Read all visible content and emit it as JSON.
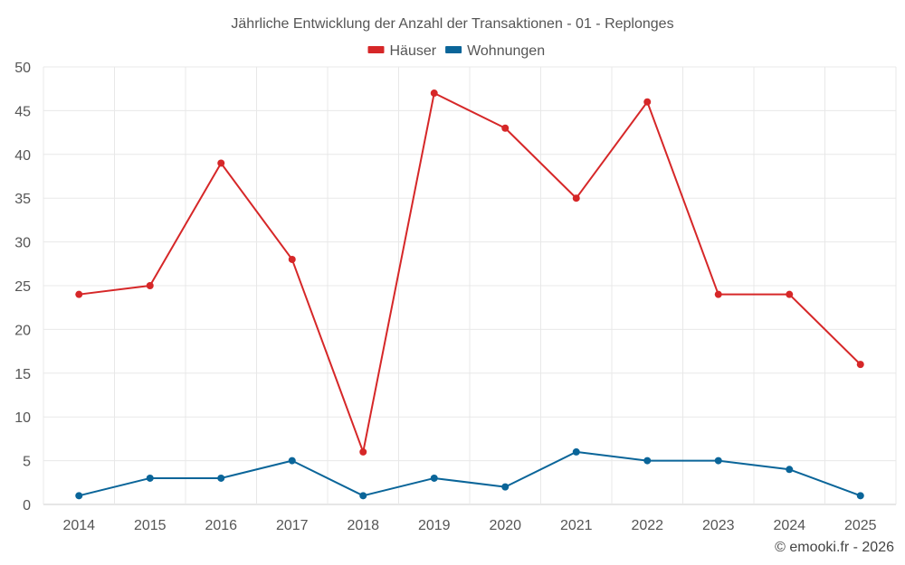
{
  "chart_data": {
    "type": "line",
    "title": "Jährliche Entwicklung der Anzahl der Transaktionen - 01 - Replonges",
    "xlabel": "",
    "ylabel": "",
    "ylim": [
      0,
      50
    ],
    "yticks": [
      0,
      5,
      10,
      15,
      20,
      25,
      30,
      35,
      40,
      45,
      50
    ],
    "categories": [
      "2014",
      "2015",
      "2016",
      "2017",
      "2018",
      "2019",
      "2020",
      "2021",
      "2022",
      "2023",
      "2024",
      "2025"
    ],
    "grid": true,
    "legend_position": "top-center",
    "series": [
      {
        "name": "Häuser",
        "color": "#d62728",
        "values": [
          24,
          25,
          39,
          28,
          6,
          47,
          43,
          35,
          46,
          24,
          24,
          16
        ]
      },
      {
        "name": "Wohnungen",
        "color": "#0a6599",
        "values": [
          1,
          3,
          3,
          5,
          1,
          3,
          2,
          6,
          5,
          5,
          4,
          1
        ]
      }
    ]
  },
  "credit": "© emooki.fr - 2026"
}
